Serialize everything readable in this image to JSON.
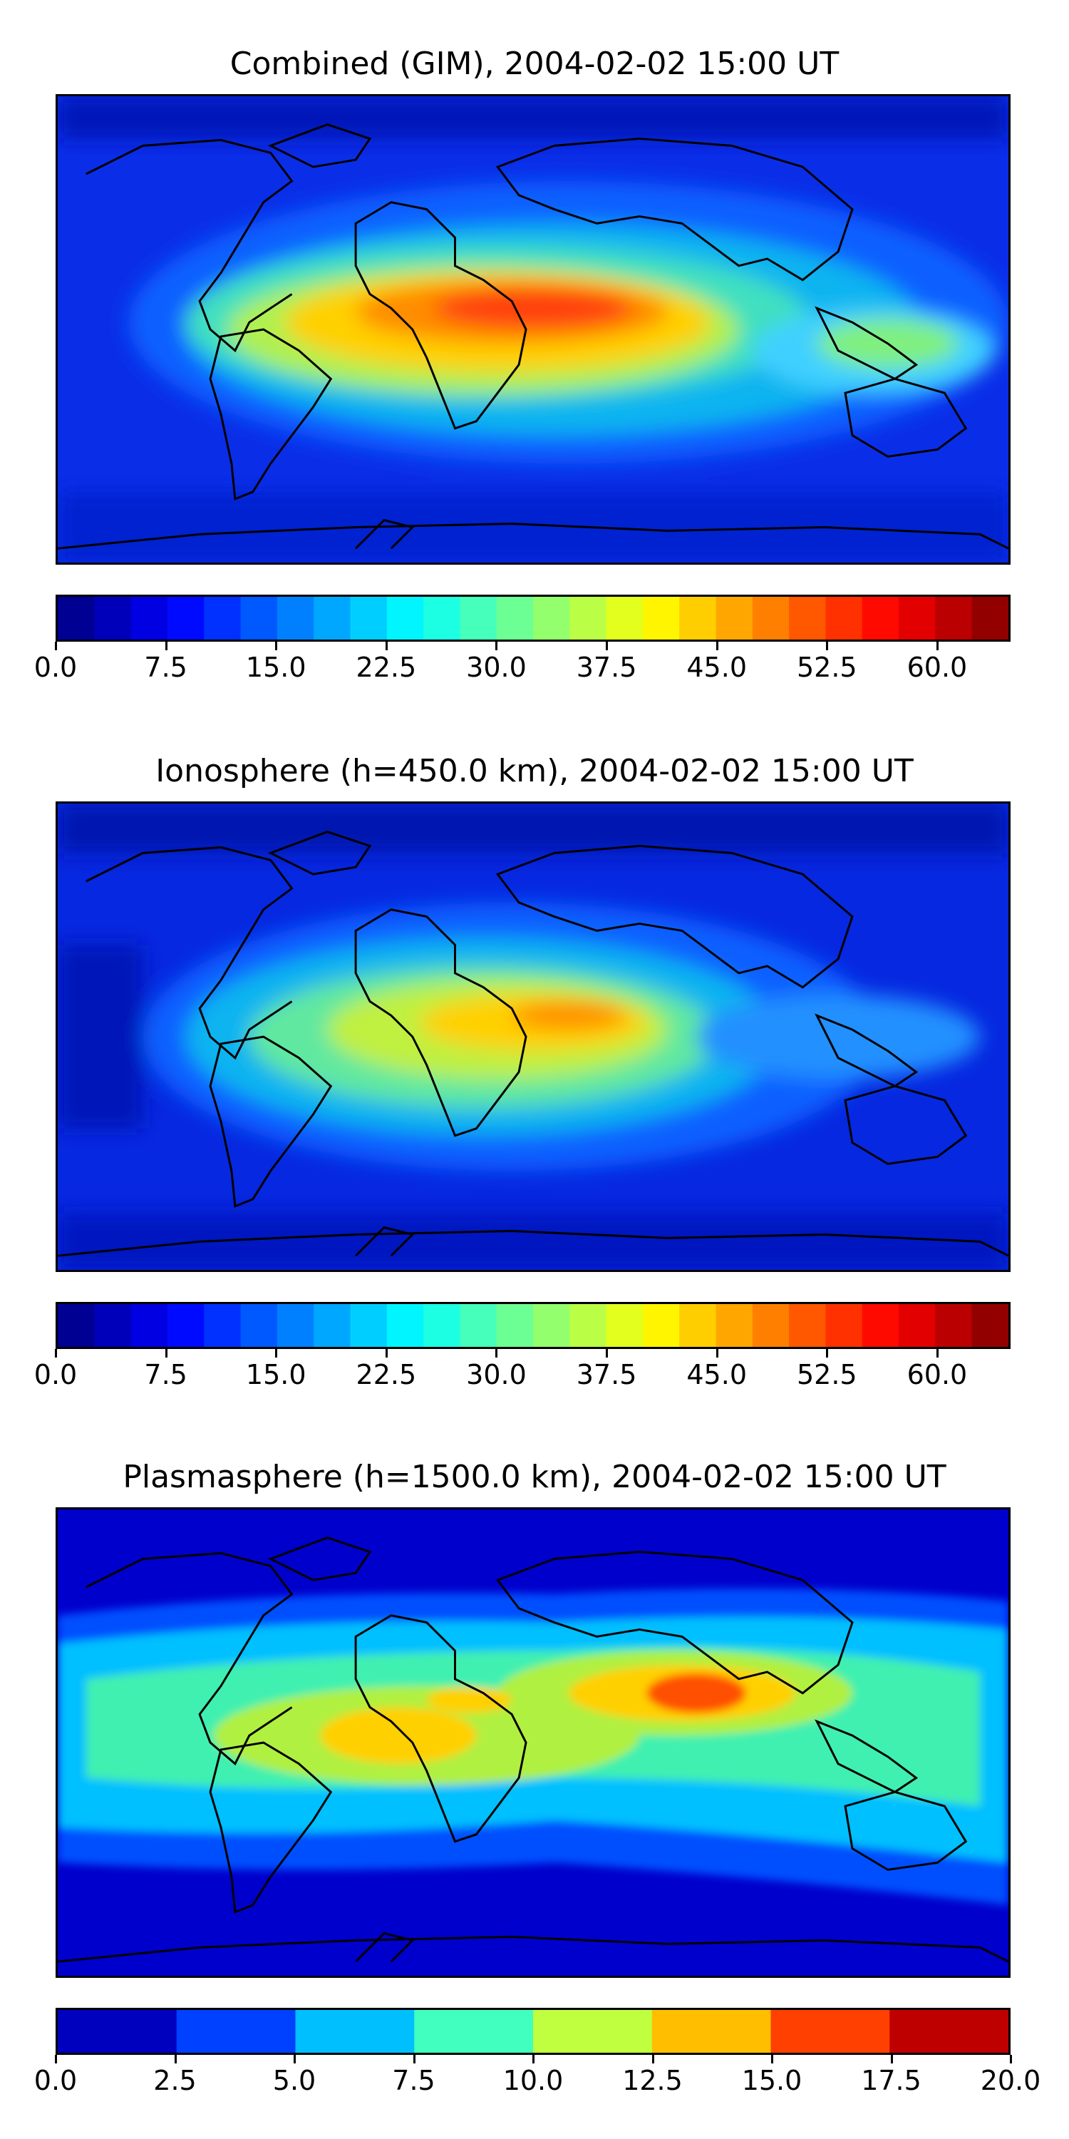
{
  "panels": [
    {
      "title": "Combined (GIM), 2004-02-02 15:00 UT",
      "colormap": "jet",
      "levels": 26,
      "vmin": 0.0,
      "vmax": 65.0,
      "ticks": [
        "0.0",
        "7.5",
        "15.0",
        "22.5",
        "30.0",
        "37.5",
        "45.0",
        "52.5",
        "60.0"
      ],
      "tick_values": [
        0.0,
        7.5,
        15.0,
        22.5,
        30.0,
        37.5,
        45.0,
        52.5,
        60.0
      ]
    },
    {
      "title": "Ionosphere  (h=450.0 km), 2004-02-02 15:00 UT",
      "colormap": "jet",
      "levels": 26,
      "vmin": 0.0,
      "vmax": 65.0,
      "ticks": [
        "0.0",
        "7.5",
        "15.0",
        "22.5",
        "30.0",
        "37.5",
        "45.0",
        "52.5",
        "60.0"
      ],
      "tick_values": [
        0.0,
        7.5,
        15.0,
        22.5,
        30.0,
        37.5,
        45.0,
        52.5,
        60.0
      ]
    },
    {
      "title": "Plasmasphere (h=1500.0 km), 2004-02-02 15:00 UT",
      "colormap": "jet",
      "levels": 8,
      "vmin": 0.0,
      "vmax": 20.0,
      "ticks": [
        "0.0",
        "2.5",
        "5.0",
        "7.5",
        "10.0",
        "12.5",
        "15.0",
        "17.5",
        "20.0"
      ],
      "tick_values": [
        0.0,
        2.5,
        5.0,
        7.5,
        10.0,
        12.5,
        15.0,
        17.5,
        20.0
      ]
    }
  ],
  "colors": {
    "background_low": "#0000cc",
    "coastline": "#000000"
  }
}
